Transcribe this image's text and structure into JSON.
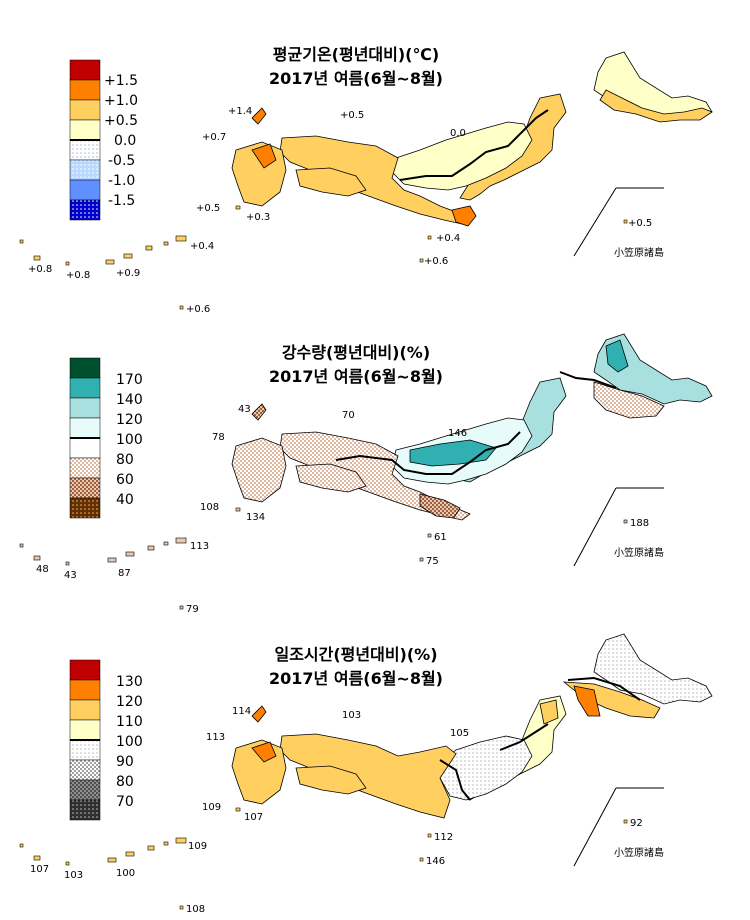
{
  "colors": {
    "temp": [
      "#c00000",
      "#ff8000",
      "#ffd060",
      "#ffffc8",
      "#e8f4ff",
      "#b8d8ff",
      "#0000cc"
    ],
    "precip": [
      "#005030",
      "#30b0b0",
      "#a8e0e0",
      "#e8fbfb",
      "#ffffff",
      "#f4d8c8",
      "#c08860",
      "#603000"
    ],
    "sun": [
      "#c00000",
      "#ff8000",
      "#ffd060",
      "#ffffc8",
      "#ffffff",
      "#e0e0e0",
      "#909090",
      "#303030"
    ]
  },
  "panels": [
    {
      "id": "temp",
      "title_line1": "평균기온(평년대비)(℃)",
      "title_line2": "2017년 여름(6월~8월)",
      "legend_labels": [
        "+1.5",
        "+1.0",
        "+0.5",
        "0.0",
        "-0.5",
        "-1.0",
        "-1.5"
      ],
      "values": {
        "tsushima": "+1.4",
        "oki": "+0.5",
        "goto": "+0.7",
        "niigata_0": "0.0",
        "yakushima": "+0.5",
        "tanegashima": "+0.3",
        "izu": "+0.4",
        "hachijo": "+0.6",
        "okinawa_main": "+0.4",
        "okinawa_w": "+0.8",
        "miyako": "+0.8",
        "amami": "+0.9",
        "daito": "+0.6",
        "ogasawara": "+0.5"
      },
      "islands_label": "小笠原諸島"
    },
    {
      "id": "precip",
      "title_line1": "강수량(평년대비)(%)",
      "title_line2": "2017년 여름(6월~8월)",
      "legend_labels": [
        "170",
        "140",
        "120",
        "100",
        "80",
        "60",
        "40"
      ],
      "values": {
        "tsushima": "43",
        "oki": "70",
        "goto": "78",
        "niigata": "146",
        "yakushima": "108",
        "tanegashima": "134",
        "izu": "61",
        "hachijo": "75",
        "okinawa_main": "113",
        "okinawa_w": "48",
        "miyako": "43",
        "amami": "87",
        "daito": "79",
        "ogasawara": "188"
      },
      "islands_label": "小笠原諸島"
    },
    {
      "id": "sun",
      "title_line1": "일조시간(평년대비)(%)",
      "title_line2": "2017년 여름(6월~8월)",
      "legend_labels": [
        "130",
        "120",
        "110",
        "100",
        "90",
        "80",
        "70"
      ],
      "values": {
        "tsushima": "114",
        "oki": "103",
        "goto": "113",
        "niigata": "105",
        "yakushima": "109",
        "tanegashima": "107",
        "izu": "112",
        "hachijo": "146",
        "okinawa_main": "109",
        "okinawa_w": "107",
        "miyako": "103",
        "amami": "100",
        "daito": "108",
        "ogasawara": "92"
      },
      "islands_label": "小笠原諸島"
    }
  ]
}
